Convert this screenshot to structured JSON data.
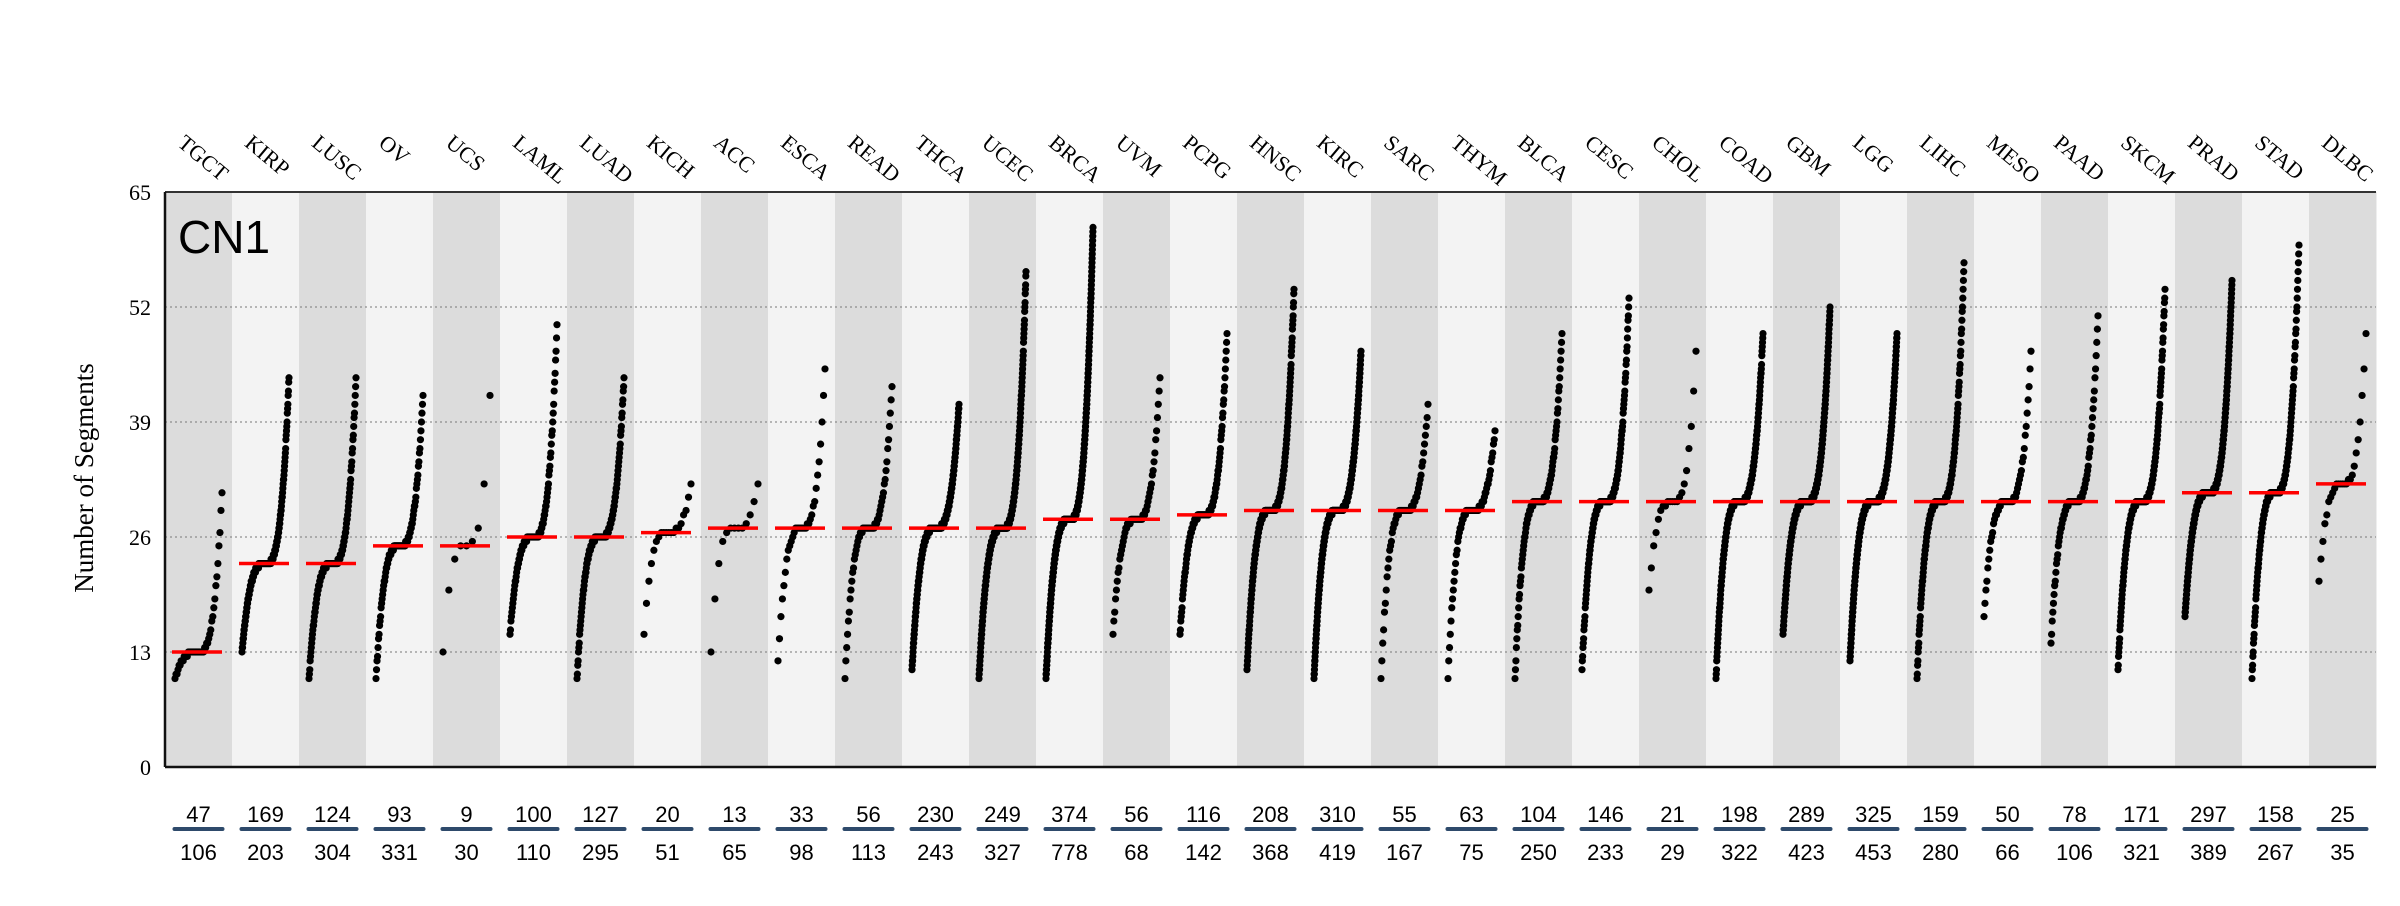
{
  "chart_data": {
    "type": "scatter",
    "panel_label": "CN1",
    "ylabel": "Number of Segments",
    "ylim": [
      0,
      65
    ],
    "yticks": [
      0,
      13,
      26,
      39,
      52,
      65
    ],
    "grid": true,
    "median_color": "#ff0000",
    "point_color": "#000000",
    "band_colors": [
      "#dcdcdc",
      "#f3f3f3"
    ],
    "divider_color": "#2e4a6b",
    "categories": [
      "TGCT",
      "KIRP",
      "LUSC",
      "OV",
      "UCS",
      "LAML",
      "LUAD",
      "KICH",
      "ACC",
      "ESCA",
      "READ",
      "THCA",
      "UCEC",
      "BRCA",
      "UVM",
      "PCPG",
      "HNSC",
      "KIRC",
      "SARC",
      "THYM",
      "BLCA",
      "CESC",
      "CHOL",
      "COAD",
      "GBM",
      "LGG",
      "LIHC",
      "MESO",
      "PAAD",
      "SKCM",
      "PRAD",
      "STAD",
      "DLBC"
    ],
    "counts_top": [
      47,
      169,
      124,
      93,
      9,
      100,
      127,
      20,
      13,
      33,
      56,
      230,
      249,
      374,
      56,
      116,
      208,
      310,
      55,
      63,
      104,
      146,
      21,
      198,
      289,
      325,
      159,
      50,
      78,
      171,
      297,
      158,
      25
    ],
    "counts_bottom": [
      106,
      203,
      304,
      331,
      30,
      110,
      295,
      51,
      65,
      98,
      113,
      243,
      327,
      778,
      68,
      142,
      368,
      419,
      167,
      75,
      250,
      233,
      29,
      322,
      423,
      453,
      280,
      66,
      106,
      321,
      389,
      267,
      35
    ],
    "medians": [
      13,
      23,
      23,
      25,
      25,
      26,
      26,
      26.5,
      27,
      27,
      27,
      27,
      27,
      28,
      28,
      28.5,
      29,
      29,
      29,
      29,
      30,
      30,
      30,
      30,
      30,
      30,
      30,
      30,
      30,
      30,
      31,
      31,
      32
    ],
    "mins": [
      10,
      13,
      10,
      10,
      13,
      15,
      10,
      15,
      13,
      12,
      10,
      11,
      10,
      10,
      15,
      15,
      11,
      10,
      10,
      10,
      10,
      11,
      20,
      10,
      15,
      12,
      10,
      17,
      14,
      11,
      17,
      10,
      21
    ],
    "maxs": [
      31,
      44,
      44,
      42,
      42,
      50,
      44,
      32,
      32,
      45,
      43,
      41,
      56,
      61,
      44,
      49,
      54,
      47,
      41,
      38,
      49,
      53,
      47,
      49,
      52,
      49,
      57,
      47,
      51,
      54,
      55,
      59,
      49
    ]
  }
}
